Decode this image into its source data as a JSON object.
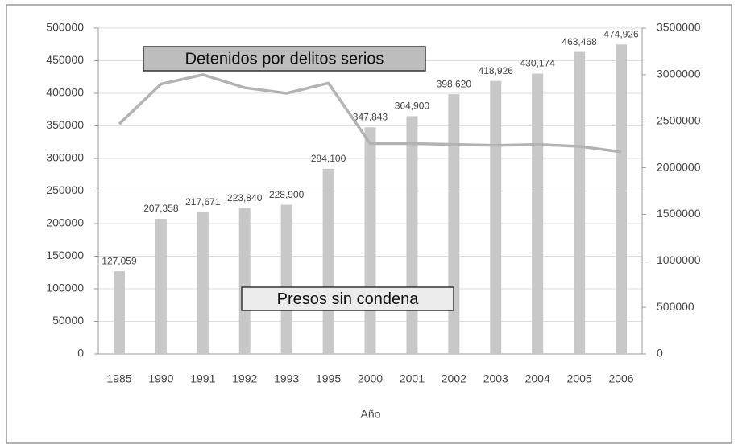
{
  "chart_data": {
    "type": "bar_line",
    "x_label": "Año",
    "categories": [
      "1985",
      "1990",
      "1991",
      "1992",
      "1993",
      "1995",
      "2000",
      "2001",
      "2002",
      "2003",
      "2004",
      "2005",
      "2006"
    ],
    "series": [
      {
        "name": "Presos sin condena",
        "type": "bar",
        "color": "#c8c8c8",
        "values": [
          127059,
          207358,
          217671,
          223840,
          228900,
          284100,
          347843,
          364900,
          398620,
          418926,
          430174,
          463468,
          474926
        ],
        "value_labels": [
          "127,059",
          "207,358",
          "217,671",
          "223,840",
          "228,900",
          "284,100",
          "347,843",
          "364,900",
          "398,620",
          "418,926",
          "430,174",
          "463,468",
          "474,926"
        ]
      },
      {
        "name": "Detenidos por delitos serios",
        "type": "line",
        "axis": "y2",
        "color": "#b3b3b3",
        "values": [
          2470000,
          2900000,
          3000000,
          2860000,
          2800000,
          2910000,
          2260000,
          2260000,
          2250000,
          2240000,
          2250000,
          2230000,
          2170000
        ]
      }
    ],
    "ylim": [
      0,
      500000
    ],
    "yticks": [
      0,
      50000,
      100000,
      150000,
      200000,
      250000,
      300000,
      350000,
      400000,
      450000,
      500000
    ],
    "y2lim": [
      0,
      3500000
    ],
    "y2ticks": [
      0,
      500000,
      1000000,
      1500000,
      2000000,
      2500000,
      3000000,
      3500000
    ],
    "grid": true
  }
}
